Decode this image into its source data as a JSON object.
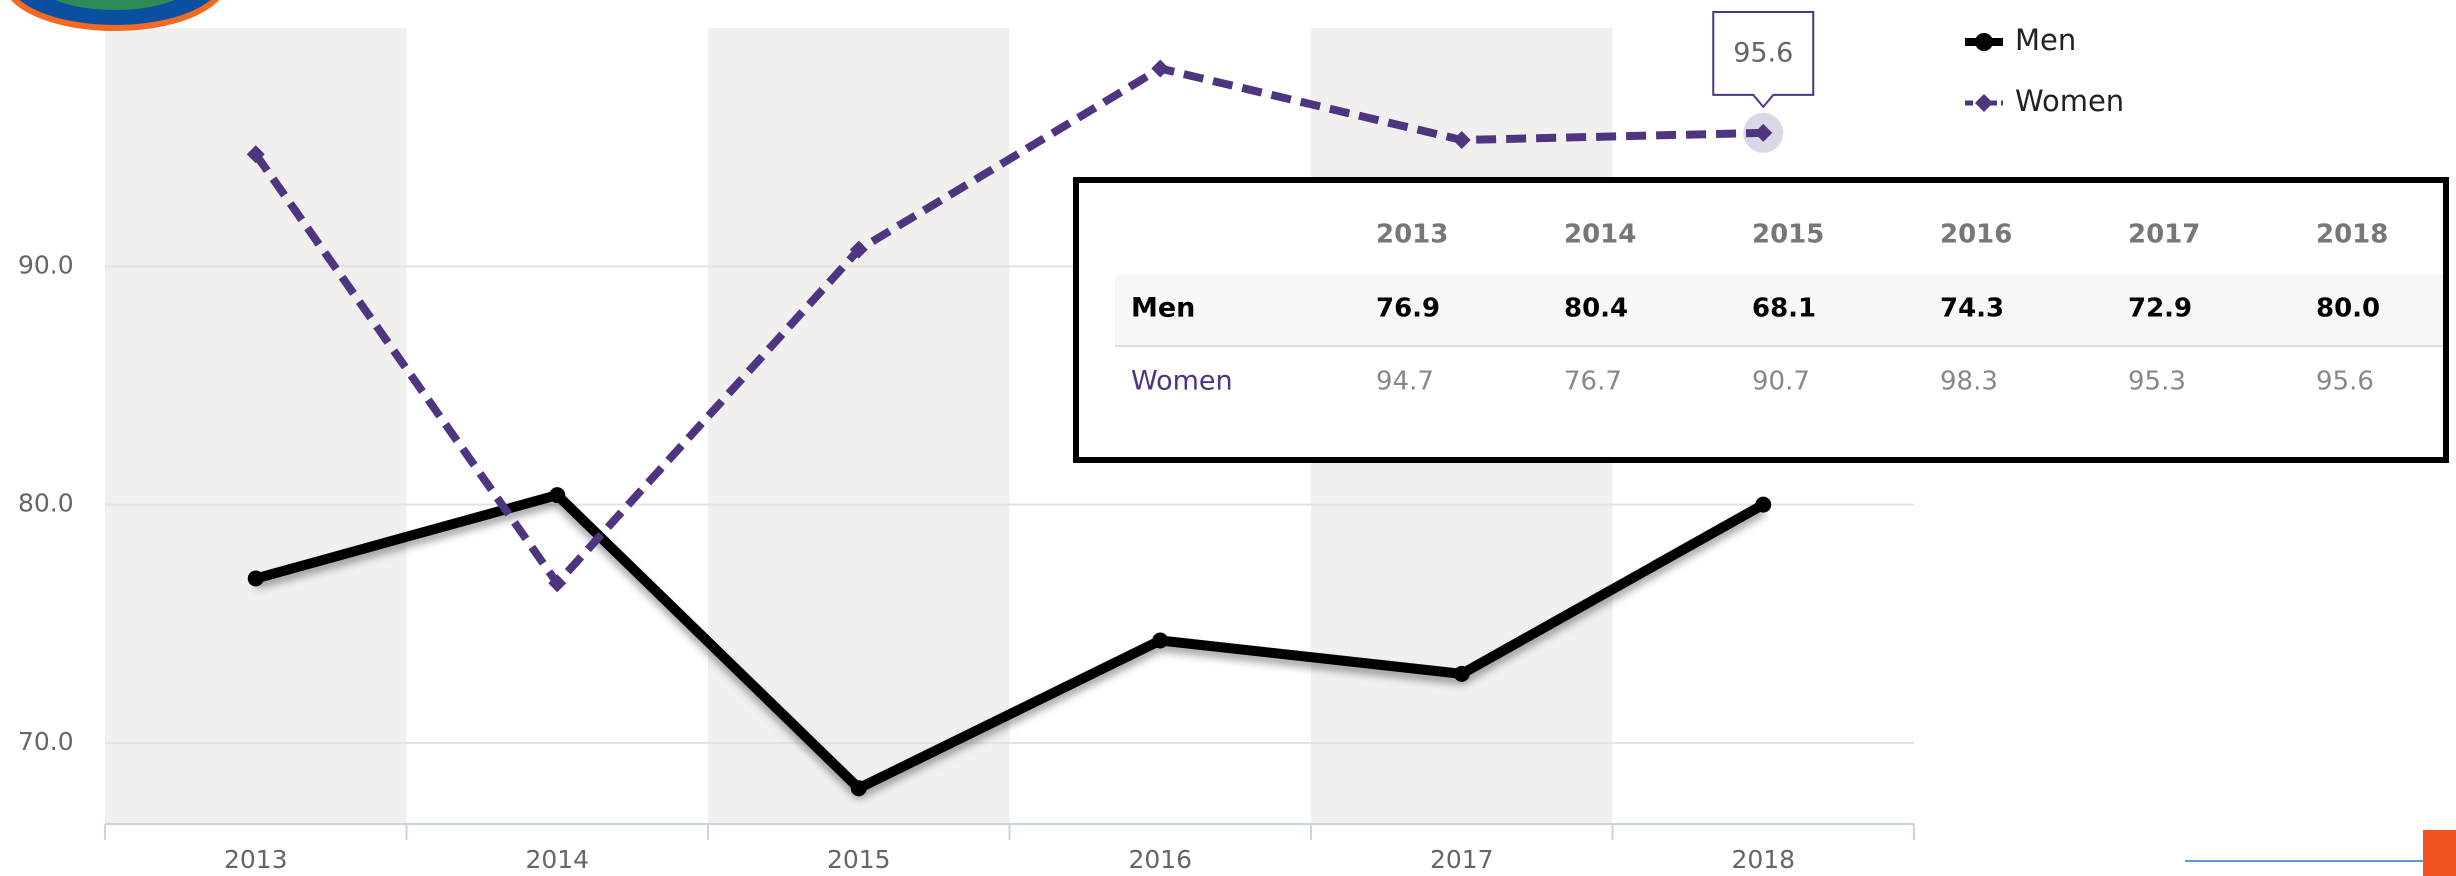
{
  "chart_data": {
    "type": "line",
    "categories": [
      "2013",
      "2014",
      "2015",
      "2016",
      "2017",
      "2018"
    ],
    "series": [
      {
        "name": "Men",
        "color": "#000000",
        "values": [
          76.9,
          80.4,
          68.1,
          74.3,
          72.9,
          80.0
        ],
        "value_labels": [
          "76.9",
          "80.4",
          "68.1",
          "74.3",
          "72.9",
          "80.0"
        ]
      },
      {
        "name": "Women",
        "color": "#4f3580",
        "values": [
          94.7,
          76.7,
          90.7,
          98.3,
          95.3,
          95.6
        ],
        "value_labels": [
          "94.7",
          "76.7",
          "90.7",
          "98.3",
          "95.3",
          "95.6"
        ]
      }
    ],
    "ylim": [
      66.6,
      100
    ],
    "yticks": [
      {
        "value": 70,
        "label": "70.0"
      },
      {
        "value": 80,
        "label": "80.0"
      },
      {
        "value": 90,
        "label": "90.0"
      }
    ],
    "grid": true,
    "legend": "top-right"
  }
}
